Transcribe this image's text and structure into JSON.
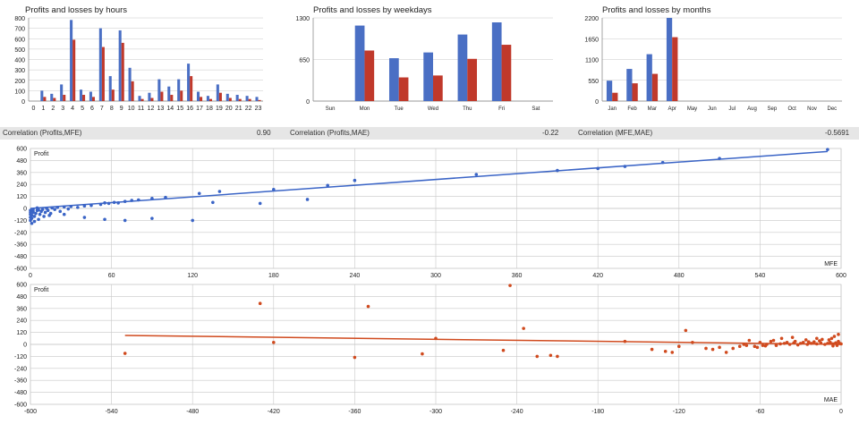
{
  "colors": {
    "profit_bar": "#4a6fc4",
    "loss_bar": "#c0392b",
    "mfe_series": "#3a64c6",
    "mae_series": "#d04a1e",
    "grid": "#c8c8c8",
    "axis_text": "#202020"
  },
  "correlations": [
    {
      "label": "Correlation (Profits,MFE)",
      "value": "0.90"
    },
    {
      "label": "Correlation (Profits,MAE)",
      "value": "-0.22"
    },
    {
      "label": "Correlation (MFE,MAE)",
      "value": "-0.5691"
    }
  ],
  "chart_data": [
    {
      "type": "bar",
      "title": "Profits and losses by hours",
      "categories": [
        "0",
        "1",
        "2",
        "3",
        "4",
        "5",
        "6",
        "7",
        "8",
        "9",
        "10",
        "11",
        "12",
        "13",
        "14",
        "15",
        "16",
        "17",
        "18",
        "19",
        "20",
        "21",
        "22",
        "23"
      ],
      "ylim": [
        0,
        800
      ],
      "yticks": [
        0,
        100,
        200,
        300,
        400,
        500,
        600,
        700,
        800
      ],
      "series": [
        {
          "values": [
            0,
            100,
            70,
            160,
            780,
            110,
            90,
            700,
            240,
            680,
            320,
            50,
            80,
            210,
            140,
            210,
            360,
            90,
            50,
            160,
            70,
            60,
            50,
            40
          ]
        },
        {
          "values": [
            0,
            40,
            30,
            60,
            590,
            60,
            40,
            520,
            110,
            560,
            190,
            20,
            30,
            90,
            60,
            100,
            240,
            40,
            20,
            80,
            30,
            20,
            20,
            10
          ]
        }
      ]
    },
    {
      "type": "bar",
      "title": "Profits and losses by weekdays",
      "categories": [
        "Sun",
        "Mon",
        "Tue",
        "Wed",
        "Thu",
        "Fri",
        "Sat"
      ],
      "ylim": [
        0,
        1300
      ],
      "yticks": [
        0,
        650,
        1300
      ],
      "series": [
        {
          "values": [
            0,
            1180,
            670,
            760,
            1040,
            1230,
            0
          ]
        },
        {
          "values": [
            0,
            790,
            370,
            400,
            660,
            880,
            0
          ]
        }
      ]
    },
    {
      "type": "bar",
      "title": "Profits and losses by months",
      "categories": [
        "Jan",
        "Feb",
        "Mar",
        "Apr",
        "May",
        "Jun",
        "Jul",
        "Aug",
        "Sep",
        "Oct",
        "Nov",
        "Dec"
      ],
      "ylim": [
        0,
        2200
      ],
      "yticks": [
        0,
        550,
        1100,
        1650,
        2200
      ],
      "series": [
        {
          "values": [
            540,
            850,
            1240,
            2200,
            0,
            0,
            0,
            0,
            0,
            0,
            0,
            0
          ]
        },
        {
          "values": [
            220,
            470,
            720,
            1690,
            0,
            0,
            0,
            0,
            0,
            0,
            0,
            0
          ]
        }
      ]
    },
    {
      "type": "scatter",
      "xlabel": "MFE",
      "ylabel": "Profit",
      "xlim": [
        0,
        600
      ],
      "ylim": [
        -600,
        600
      ],
      "xticks": [
        0,
        60,
        120,
        180,
        240,
        300,
        360,
        420,
        480,
        540,
        600
      ],
      "yticks": [
        -600,
        -480,
        -360,
        -240,
        -120,
        0,
        120,
        240,
        360,
        480,
        600
      ],
      "trendline": [
        [
          0,
          0
        ],
        [
          590,
          570
        ]
      ],
      "points": [
        [
          0,
          -120
        ],
        [
          0,
          -90
        ],
        [
          0,
          -60
        ],
        [
          0,
          -40
        ],
        [
          0,
          -20
        ],
        [
          1,
          -150
        ],
        [
          1,
          -100
        ],
        [
          1,
          -70
        ],
        [
          2,
          -30
        ],
        [
          2,
          -10
        ],
        [
          3,
          -130
        ],
        [
          3,
          -80
        ],
        [
          4,
          -50
        ],
        [
          5,
          -20
        ],
        [
          5,
          5
        ],
        [
          6,
          -110
        ],
        [
          7,
          -60
        ],
        [
          8,
          -30
        ],
        [
          9,
          -10
        ],
        [
          10,
          -80
        ],
        [
          11,
          -40
        ],
        [
          12,
          0
        ],
        [
          13,
          -20
        ],
        [
          15,
          -50
        ],
        [
          16,
          5
        ],
        [
          18,
          -10
        ],
        [
          20,
          10
        ],
        [
          22,
          -30
        ],
        [
          25,
          15
        ],
        [
          28,
          -5
        ],
        [
          30,
          20
        ],
        [
          35,
          10
        ],
        [
          40,
          25
        ],
        [
          45,
          30
        ],
        [
          52,
          40
        ],
        [
          55,
          55
        ],
        [
          58,
          50
        ],
        [
          62,
          60
        ],
        [
          65,
          55
        ],
        [
          70,
          70
        ],
        [
          75,
          80
        ],
        [
          80,
          85
        ],
        [
          90,
          100
        ],
        [
          100,
          110
        ],
        [
          125,
          150
        ],
        [
          140,
          170
        ],
        [
          180,
          190
        ],
        [
          220,
          230
        ],
        [
          240,
          280
        ],
        [
          330,
          340
        ],
        [
          390,
          380
        ],
        [
          420,
          400
        ],
        [
          440,
          420
        ],
        [
          468,
          460
        ],
        [
          510,
          500
        ],
        [
          590,
          590
        ],
        [
          2,
          -40
        ],
        [
          6,
          -15
        ],
        [
          14,
          -70
        ],
        [
          25,
          -60
        ],
        [
          40,
          -90
        ],
        [
          55,
          -110
        ],
        [
          70,
          -120
        ],
        [
          90,
          -100
        ],
        [
          120,
          -120
        ],
        [
          135,
          60
        ],
        [
          170,
          50
        ],
        [
          205,
          90
        ]
      ]
    },
    {
      "type": "scatter",
      "xlabel": "MAE",
      "ylabel": "Profit",
      "xlim": [
        -600,
        0
      ],
      "ylim": [
        -600,
        600
      ],
      "xticks": [
        -600,
        -540,
        -480,
        -420,
        -360,
        -300,
        -240,
        -180,
        -120,
        -60,
        0
      ],
      "yticks": [
        -600,
        -480,
        -360,
        -240,
        -120,
        0,
        120,
        240,
        360,
        480,
        600
      ],
      "trendline": [
        [
          -530,
          90
        ],
        [
          0,
          0
        ]
      ],
      "points": [
        [
          -530,
          -90
        ],
        [
          -430,
          410
        ],
        [
          -420,
          20
        ],
        [
          -360,
          -130
        ],
        [
          -350,
          380
        ],
        [
          -310,
          -95
        ],
        [
          -300,
          60
        ],
        [
          -250,
          -60
        ],
        [
          -245,
          590
        ],
        [
          -235,
          160
        ],
        [
          -225,
          -120
        ],
        [
          -215,
          -110
        ],
        [
          -210,
          -120
        ],
        [
          -160,
          30
        ],
        [
          -140,
          -50
        ],
        [
          -130,
          -70
        ],
        [
          -125,
          -80
        ],
        [
          -120,
          -20
        ],
        [
          -115,
          140
        ],
        [
          -110,
          20
        ],
        [
          -100,
          -40
        ],
        [
          -95,
          -50
        ],
        [
          -90,
          -30
        ],
        [
          -85,
          -80
        ],
        [
          -80,
          -40
        ],
        [
          -75,
          -20
        ],
        [
          -70,
          -10
        ],
        [
          -68,
          40
        ],
        [
          -62,
          -30
        ],
        [
          -58,
          -10
        ],
        [
          -55,
          0
        ],
        [
          -52,
          30
        ],
        [
          -48,
          -10
        ],
        [
          -45,
          5
        ],
        [
          -40,
          20
        ],
        [
          -38,
          0
        ],
        [
          -35,
          15
        ],
        [
          -32,
          -5
        ],
        [
          -30,
          10
        ],
        [
          -28,
          20
        ],
        [
          -25,
          0
        ],
        [
          -22,
          10
        ],
        [
          -20,
          25
        ],
        [
          -18,
          5
        ],
        [
          -15,
          15
        ],
        [
          -12,
          0
        ],
        [
          -10,
          10
        ],
        [
          -8,
          20
        ],
        [
          -6,
          5
        ],
        [
          -4,
          15
        ],
        [
          -3,
          0
        ],
        [
          -2,
          30
        ],
        [
          -1,
          10
        ],
        [
          0,
          5
        ],
        [
          -9,
          45
        ],
        [
          -14,
          50
        ],
        [
          -18,
          60
        ],
        [
          -26,
          45
        ],
        [
          -36,
          70
        ],
        [
          -44,
          60
        ],
        [
          -50,
          40
        ],
        [
          -60,
          20
        ],
        [
          -2,
          100
        ],
        [
          -5,
          80
        ],
        [
          -7,
          60
        ],
        [
          -16,
          35
        ],
        [
          -24,
          25
        ],
        [
          -34,
          30
        ],
        [
          -42,
          10
        ],
        [
          -48,
          -5
        ],
        [
          -56,
          -15
        ],
        [
          -64,
          -20
        ],
        [
          -72,
          0
        ],
        [
          -3,
          -10
        ],
        [
          -6,
          -15
        ]
      ]
    }
  ]
}
